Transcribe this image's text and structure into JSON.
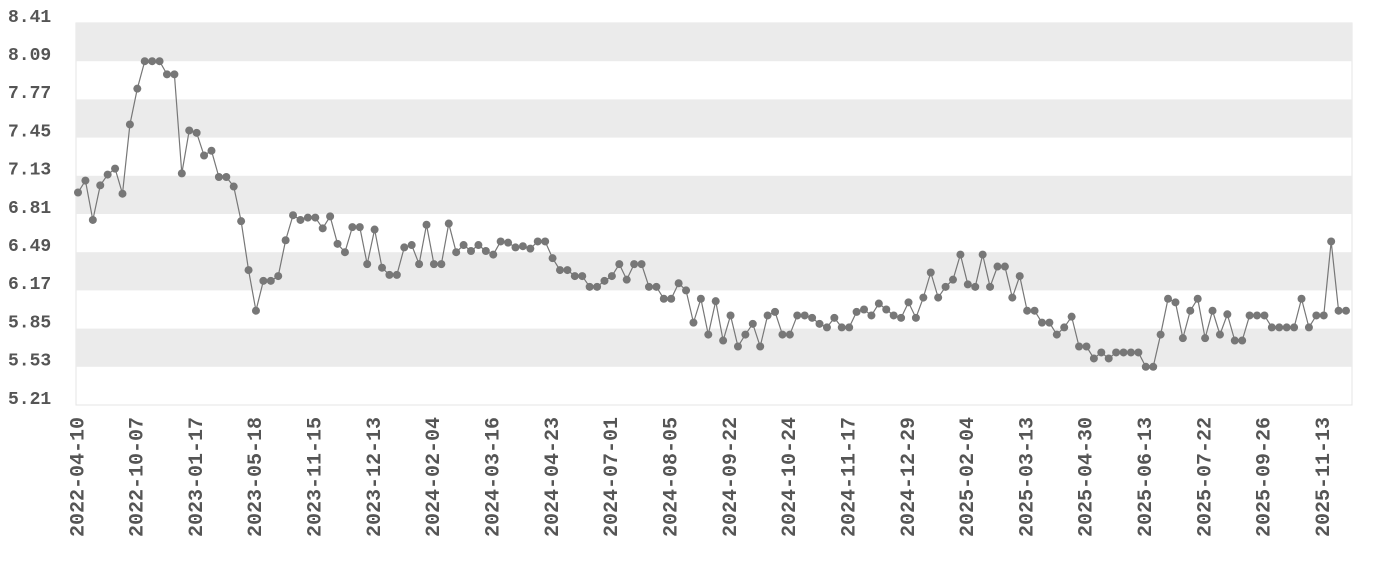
{
  "chart_data": {
    "type": "line",
    "categories": [
      "2022-04-10",
      null,
      null,
      null,
      null,
      null,
      null,
      null,
      "2022-10-07",
      null,
      null,
      null,
      null,
      null,
      null,
      null,
      "2023-01-17",
      null,
      null,
      null,
      null,
      null,
      null,
      null,
      "2023-05-18",
      null,
      null,
      null,
      null,
      null,
      null,
      null,
      "2023-11-15",
      null,
      null,
      null,
      null,
      null,
      null,
      null,
      "2023-12-13",
      null,
      null,
      null,
      null,
      null,
      null,
      null,
      "2024-02-04",
      null,
      null,
      null,
      null,
      null,
      null,
      null,
      "2024-03-16",
      null,
      null,
      null,
      null,
      null,
      null,
      null,
      "2024-04-23",
      null,
      null,
      null,
      null,
      null,
      null,
      null,
      "2024-07-01",
      null,
      null,
      null,
      null,
      null,
      null,
      null,
      "2024-08-05",
      null,
      null,
      null,
      null,
      null,
      null,
      null,
      "2024-09-22",
      null,
      null,
      null,
      null,
      null,
      null,
      null,
      "2024-10-24",
      null,
      null,
      null,
      null,
      null,
      null,
      null,
      "2024-11-17",
      null,
      null,
      null,
      null,
      null,
      null,
      null,
      "2024-12-29",
      null,
      null,
      null,
      null,
      null,
      null,
      null,
      "2025-02-04",
      null,
      null,
      null,
      null,
      null,
      null,
      null,
      "2025-03-13",
      null,
      null,
      null,
      null,
      null,
      null,
      null,
      "2025-04-30",
      null,
      null,
      null,
      null,
      null,
      null,
      null,
      "2025-06-13",
      null,
      null,
      null,
      null,
      null,
      null,
      null,
      "2025-07-22",
      null,
      null,
      null,
      null,
      null,
      null,
      null,
      "2025-09-26",
      null,
      null,
      null,
      null,
      null,
      null,
      null,
      "2025-11-13",
      null,
      null,
      null
    ],
    "values": [
      6.99,
      7.09,
      6.76,
      7.05,
      7.14,
      7.19,
      6.98,
      7.56,
      7.86,
      8.09,
      8.09,
      8.09,
      7.98,
      7.98,
      7.15,
      7.51,
      7.49,
      7.3,
      7.34,
      7.12,
      7.12,
      7.04,
      6.75,
      6.34,
      6.0,
      6.25,
      6.25,
      6.29,
      6.59,
      6.8,
      6.76,
      6.78,
      6.78,
      6.69,
      6.79,
      6.56,
      6.49,
      6.7,
      6.7,
      6.39,
      6.68,
      6.36,
      6.3,
      6.3,
      6.53,
      6.55,
      6.39,
      6.72,
      6.39,
      6.39,
      6.73,
      6.49,
      6.55,
      6.5,
      6.55,
      6.5,
      6.47,
      6.58,
      6.57,
      6.53,
      6.54,
      6.52,
      6.58,
      6.58,
      6.44,
      6.34,
      6.34,
      6.29,
      6.29,
      6.2,
      6.2,
      6.25,
      6.29,
      6.39,
      6.26,
      6.39,
      6.39,
      6.2,
      6.2,
      6.1,
      6.1,
      6.23,
      6.17,
      5.9,
      6.1,
      5.8,
      6.08,
      5.75,
      5.96,
      5.7,
      5.8,
      5.89,
      5.7,
      5.96,
      5.99,
      5.8,
      5.8,
      5.96,
      5.96,
      5.94,
      5.89,
      5.86,
      5.94,
      5.86,
      5.86,
      5.99,
      6.01,
      5.96,
      6.06,
      6.01,
      5.96,
      5.94,
      6.07,
      5.94,
      6.11,
      6.32,
      6.11,
      6.2,
      6.26,
      6.47,
      6.22,
      6.2,
      6.47,
      6.2,
      6.37,
      6.37,
      6.11,
      6.29,
      6.0,
      6.0,
      5.9,
      5.9,
      5.8,
      5.86,
      5.95,
      5.7,
      5.7,
      5.6,
      5.65,
      5.6,
      5.65,
      5.65,
      5.65,
      5.65,
      5.53,
      5.53,
      5.8,
      6.1,
      6.07,
      5.77,
      6.0,
      6.1,
      5.77,
      6.0,
      5.8,
      5.97,
      5.75,
      5.75,
      5.96,
      5.96,
      5.96,
      5.86,
      5.86,
      5.86,
      5.86,
      6.1,
      5.86,
      5.96,
      5.96,
      6.58,
      6.0,
      6.0
    ],
    "color": "#777777",
    "ylim": [
      5.21,
      8.41
    ],
    "yticks": [
      5.21,
      5.53,
      5.85,
      6.17,
      6.49,
      6.81,
      7.13,
      7.45,
      7.77,
      8.09,
      8.41
    ],
    "grid": true
  }
}
